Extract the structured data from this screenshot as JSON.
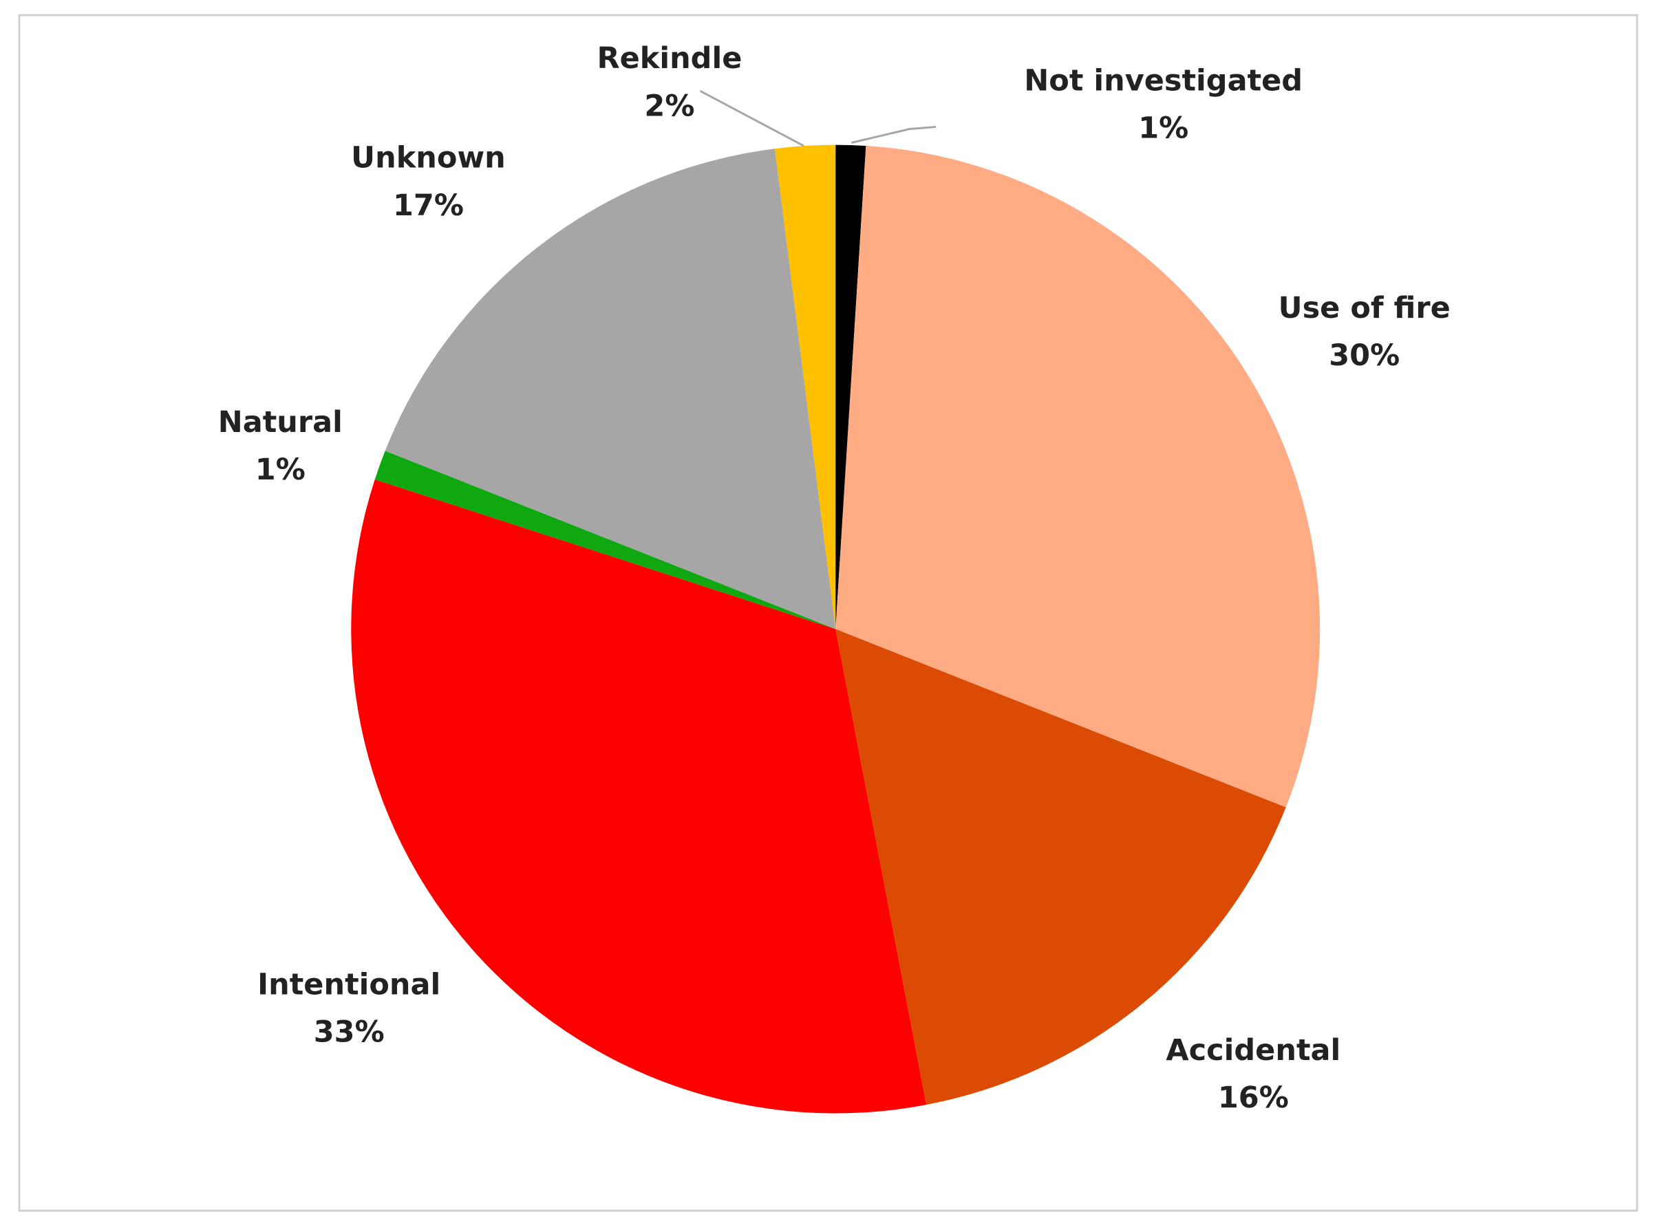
{
  "chart_data": {
    "type": "pie",
    "categories": [
      "Not investigated",
      "Use of fire",
      "Accidental",
      "Intentional",
      "Natural",
      "Unknown",
      "Rekindle"
    ],
    "values": [
      1,
      30,
      16,
      33,
      1,
      17,
      2
    ],
    "value_labels": [
      "1%",
      "30%",
      "16%",
      "33%",
      "1%",
      "17%",
      "2%"
    ],
    "colors": [
      "#000000",
      "#FFAC84",
      "#DB4B04",
      "#FF0000",
      "#10A810",
      "#A6A6A6",
      "#FFC000"
    ]
  }
}
